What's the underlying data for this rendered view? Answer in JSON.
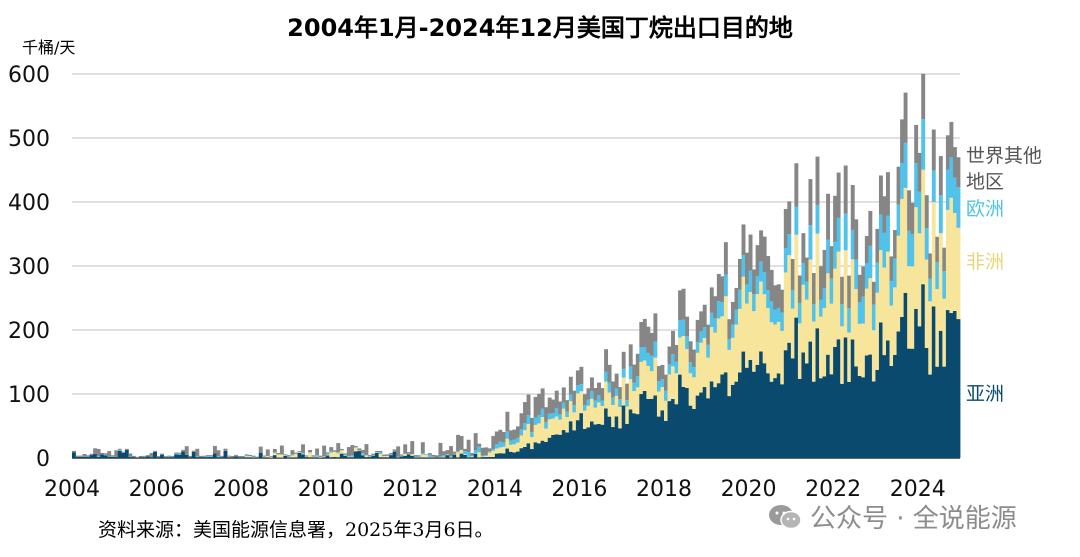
{
  "chart_data": {
    "type": "bar",
    "stacked": true,
    "title": "2004年1月-2024年12月美国丁烷出口目的地",
    "unit_label": "千桶/天",
    "source": "资料来源：美国能源信息署，2025年3月6日。",
    "watermark": "公众号 · 全说能源",
    "xlim": [
      2004,
      2025
    ],
    "ylim": [
      0,
      600
    ],
    "y_ticks": [
      0,
      100,
      200,
      300,
      400,
      500,
      600
    ],
    "x_ticks": [
      2004,
      2006,
      2008,
      2010,
      2012,
      2014,
      2016,
      2018,
      2020,
      2022,
      2024
    ],
    "grid": true,
    "legend_placement": "right, inline next to series",
    "series": [
      {
        "name": "亚洲",
        "color": "#0b4a6f",
        "anchor_years": [
          2004,
          2005,
          2006,
          2007,
          2008,
          2009,
          2010,
          2011,
          2012,
          2013,
          2014,
          2015,
          2016,
          2017,
          2018,
          2019,
          2020,
          2021,
          2022,
          2023,
          2024,
          2025
        ],
        "anchor_values": [
          8,
          8,
          6,
          7,
          6,
          5,
          6,
          7,
          5,
          5,
          8,
          20,
          55,
          70,
          95,
          110,
          135,
          175,
          155,
          170,
          205,
          210
        ]
      },
      {
        "name": "非洲",
        "color": "#f7e59b",
        "anchor_years": [
          2004,
          2005,
          2006,
          2007,
          2008,
          2009,
          2010,
          2011,
          2012,
          2013,
          2014,
          2015,
          2016,
          2017,
          2018,
          2019,
          2020,
          2021,
          2022,
          2023,
          2024,
          2025
        ],
        "anchor_values": [
          0,
          0,
          0,
          0,
          1,
          3,
          5,
          3,
          3,
          4,
          10,
          25,
          30,
          40,
          45,
          75,
          105,
          115,
          110,
          120,
          140,
          150
        ]
      },
      {
        "name": "欧洲",
        "color": "#52c2ea",
        "anchor_years": [
          2004,
          2005,
          2006,
          2007,
          2008,
          2009,
          2010,
          2011,
          2012,
          2013,
          2014,
          2015,
          2016,
          2017,
          2018,
          2019,
          2020,
          2021,
          2022,
          2023,
          2024,
          2025
        ],
        "anchor_values": [
          1,
          1,
          1,
          1,
          1,
          1,
          2,
          2,
          2,
          2,
          10,
          10,
          10,
          15,
          20,
          20,
          30,
          35,
          40,
          50,
          55,
          55
        ]
      },
      {
        "name": "世界其他地区",
        "color": "#868686",
        "anchor_years": [
          2004,
          2005,
          2006,
          2007,
          2008,
          2009,
          2010,
          2011,
          2012,
          2013,
          2014,
          2015,
          2016,
          2017,
          2018,
          2019,
          2020,
          2021,
          2022,
          2023,
          2024,
          2025
        ],
        "anchor_values": [
          9,
          9,
          7,
          8,
          8,
          8,
          10,
          10,
          12,
          15,
          25,
          25,
          20,
          30,
          35,
          35,
          45,
          55,
          60,
          55,
          60,
          50
        ]
      }
    ]
  },
  "legend_labels": {
    "rest_line1": "世界其他",
    "rest_line2": "地区",
    "europe": "欧洲",
    "africa": "非洲",
    "asia": "亚洲"
  },
  "colors": {
    "asia": "#0b4a6f",
    "africa": "#f7e59b",
    "europe": "#52c2ea",
    "rest": "#868686"
  }
}
